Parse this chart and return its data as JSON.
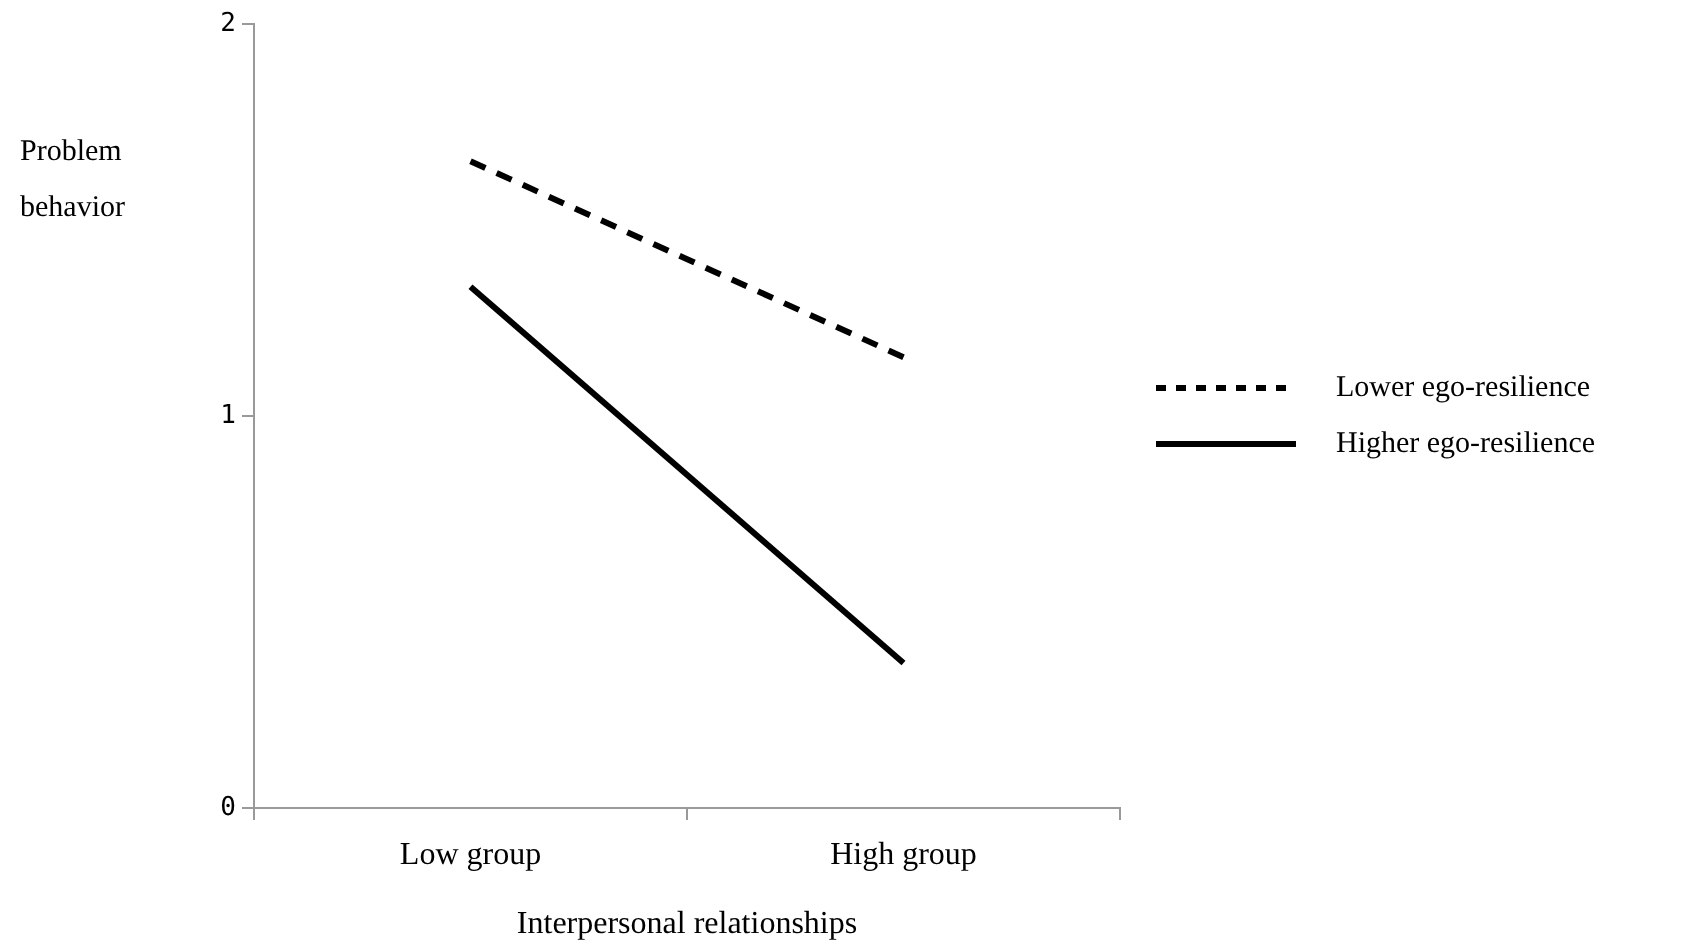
{
  "chart_data": {
    "type": "line",
    "xlabel": "Interpersonal relationships",
    "ylabel": "Problem behavior",
    "categories": [
      "Low group",
      "High group"
    ],
    "series": [
      {
        "name": "Lower ego-resilience",
        "color": "#000000",
        "values": [
          1.65,
          1.15
        ],
        "line_style": "dashed"
      },
      {
        "name": "Higher ego-resilience",
        "color": "#000000",
        "values": [
          1.33,
          0.37
        ],
        "line_style": "solid"
      }
    ],
    "ylim": [
      0,
      2
    ],
    "yticks": [
      0,
      1,
      2
    ],
    "grid": false,
    "legend": "right",
    "marker": "none"
  }
}
